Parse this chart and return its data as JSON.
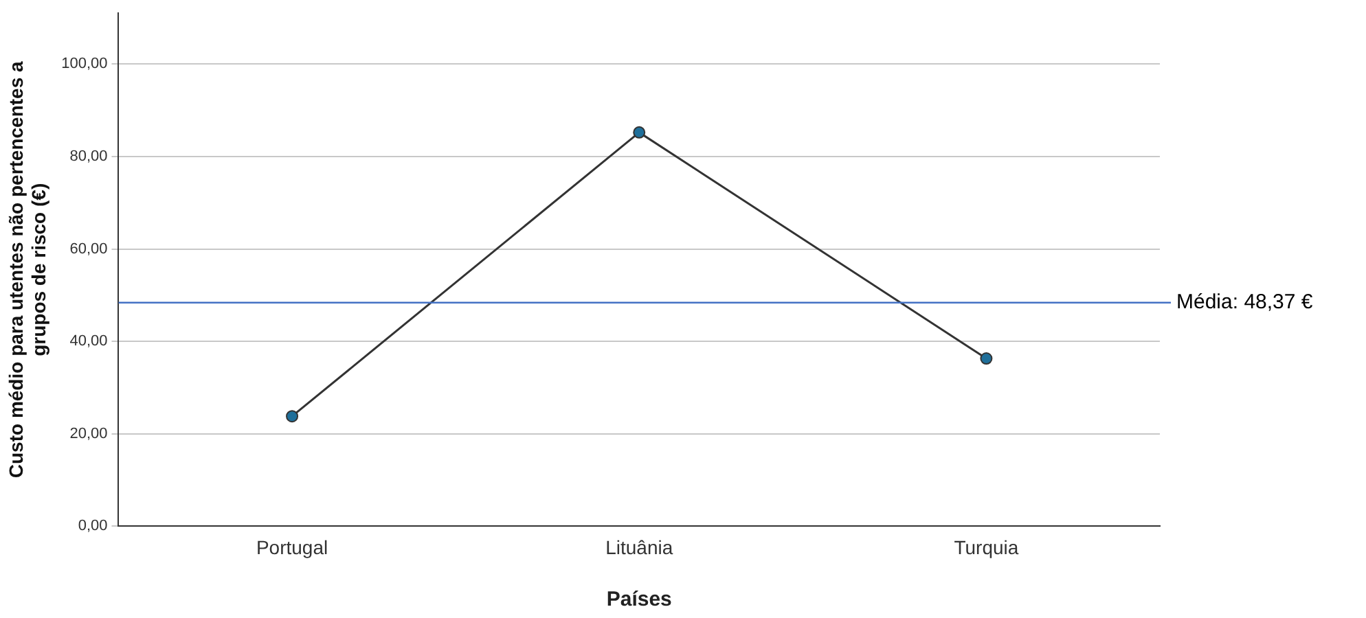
{
  "chart_data": {
    "type": "line",
    "xlabel": "Países",
    "ylabel": "Custo médio para utentes não pertencentes a grupos de risco (€)",
    "categories": [
      "Portugal",
      "Lituânia",
      "Turquia"
    ],
    "series": [
      {
        "color": "#333333",
        "values": [
          23.8,
          85.2,
          36.3
        ]
      }
    ],
    "ylim": [
      0,
      111
    ],
    "yticks": [
      {
        "value": 0,
        "label": "0,00"
      },
      {
        "value": 20,
        "label": "20,00"
      },
      {
        "value": 40,
        "label": "40,00"
      },
      {
        "value": 60,
        "label": "60,00"
      },
      {
        "value": 80,
        "label": "80,00"
      },
      {
        "value": 100,
        "label": "100,00"
      }
    ],
    "grid": "y",
    "marker": "circle",
    "legend": false,
    "ref_lines": [
      {
        "axis": "y",
        "value": 48.37,
        "label": "Média: 48,37 €",
        "color": "#4472c4"
      }
    ]
  }
}
